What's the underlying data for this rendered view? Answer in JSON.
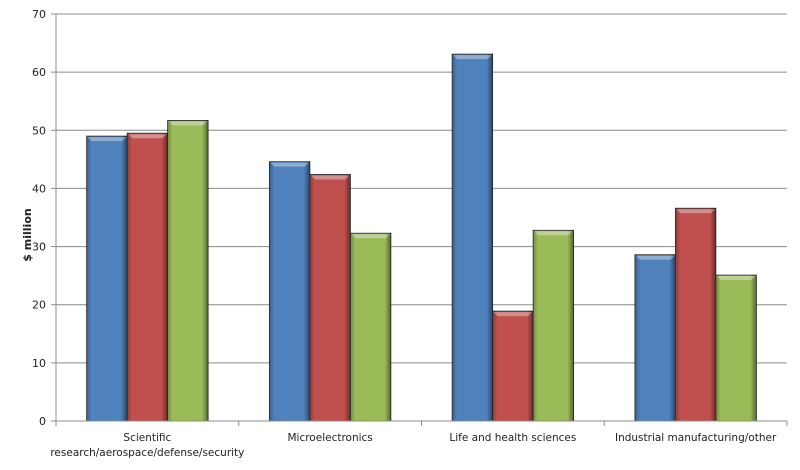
{
  "chart_data": {
    "type": "bar",
    "title": "",
    "xlabel": "",
    "ylabel": "$ million",
    "ylim": [
      0,
      70
    ],
    "yticks": [
      "0",
      "10",
      "20",
      "30",
      "40",
      "50",
      "60",
      "70"
    ],
    "grid": true,
    "legend": "none",
    "categories": [
      [
        "Scientific",
        "research/aerospace/defense/security"
      ],
      [
        "Microelectronics"
      ],
      [
        "Life and health sciences"
      ],
      [
        "Industrial manufacturing/other"
      ]
    ],
    "series": [
      {
        "color": "#4F81BD",
        "values": [
          49.0,
          44.6,
          63.1,
          28.6
        ]
      },
      {
        "color": "#C0504D",
        "values": [
          49.5,
          42.4,
          18.9,
          36.6
        ]
      },
      {
        "color": "#9BBB59",
        "values": [
          51.7,
          32.3,
          32.8,
          25.1
        ]
      }
    ]
  }
}
